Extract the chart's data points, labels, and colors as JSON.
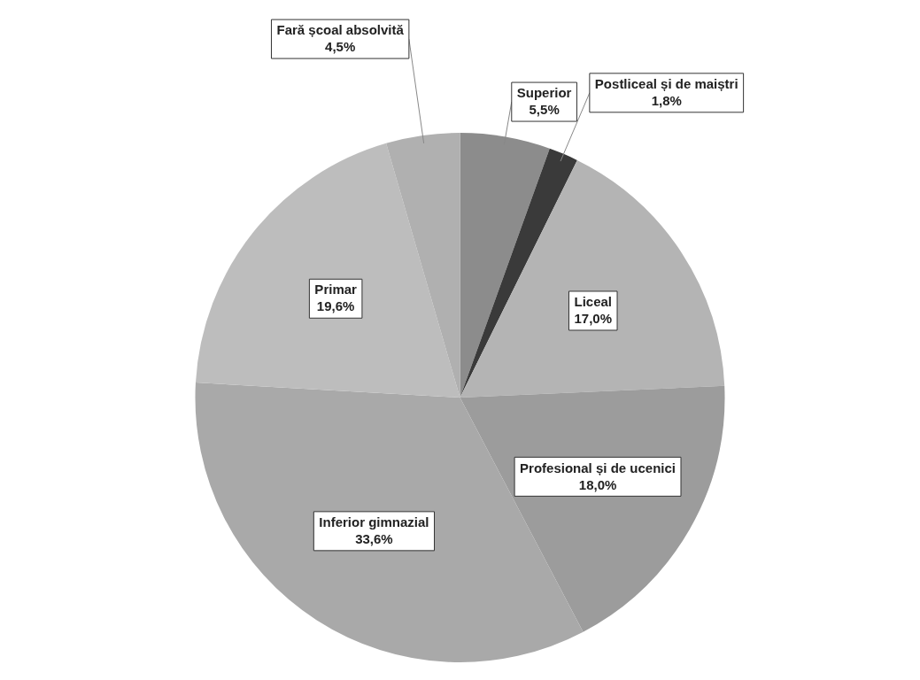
{
  "chart_data": {
    "type": "pie",
    "categories": [
      "Superior",
      "Postliceal și de maiștri",
      "Liceal",
      "Profesional și de ucenici",
      "Inferior gimnazial",
      "Primar",
      "Fară școal absolvită"
    ],
    "values": [
      5.5,
      1.8,
      17.0,
      18.0,
      33.6,
      19.6,
      4.5
    ],
    "value_labels": [
      "5,5%",
      "1,8%",
      "17,0%",
      "18,0%",
      "33,6%",
      "19,6%",
      "4,5%"
    ],
    "colors": [
      "#8c8c8c",
      "#3a3a3a",
      "#b4b4b4",
      "#9c9c9c",
      "#a9a9a9",
      "#bdbdbd",
      "#b0b0b0"
    ],
    "legend": false
  }
}
